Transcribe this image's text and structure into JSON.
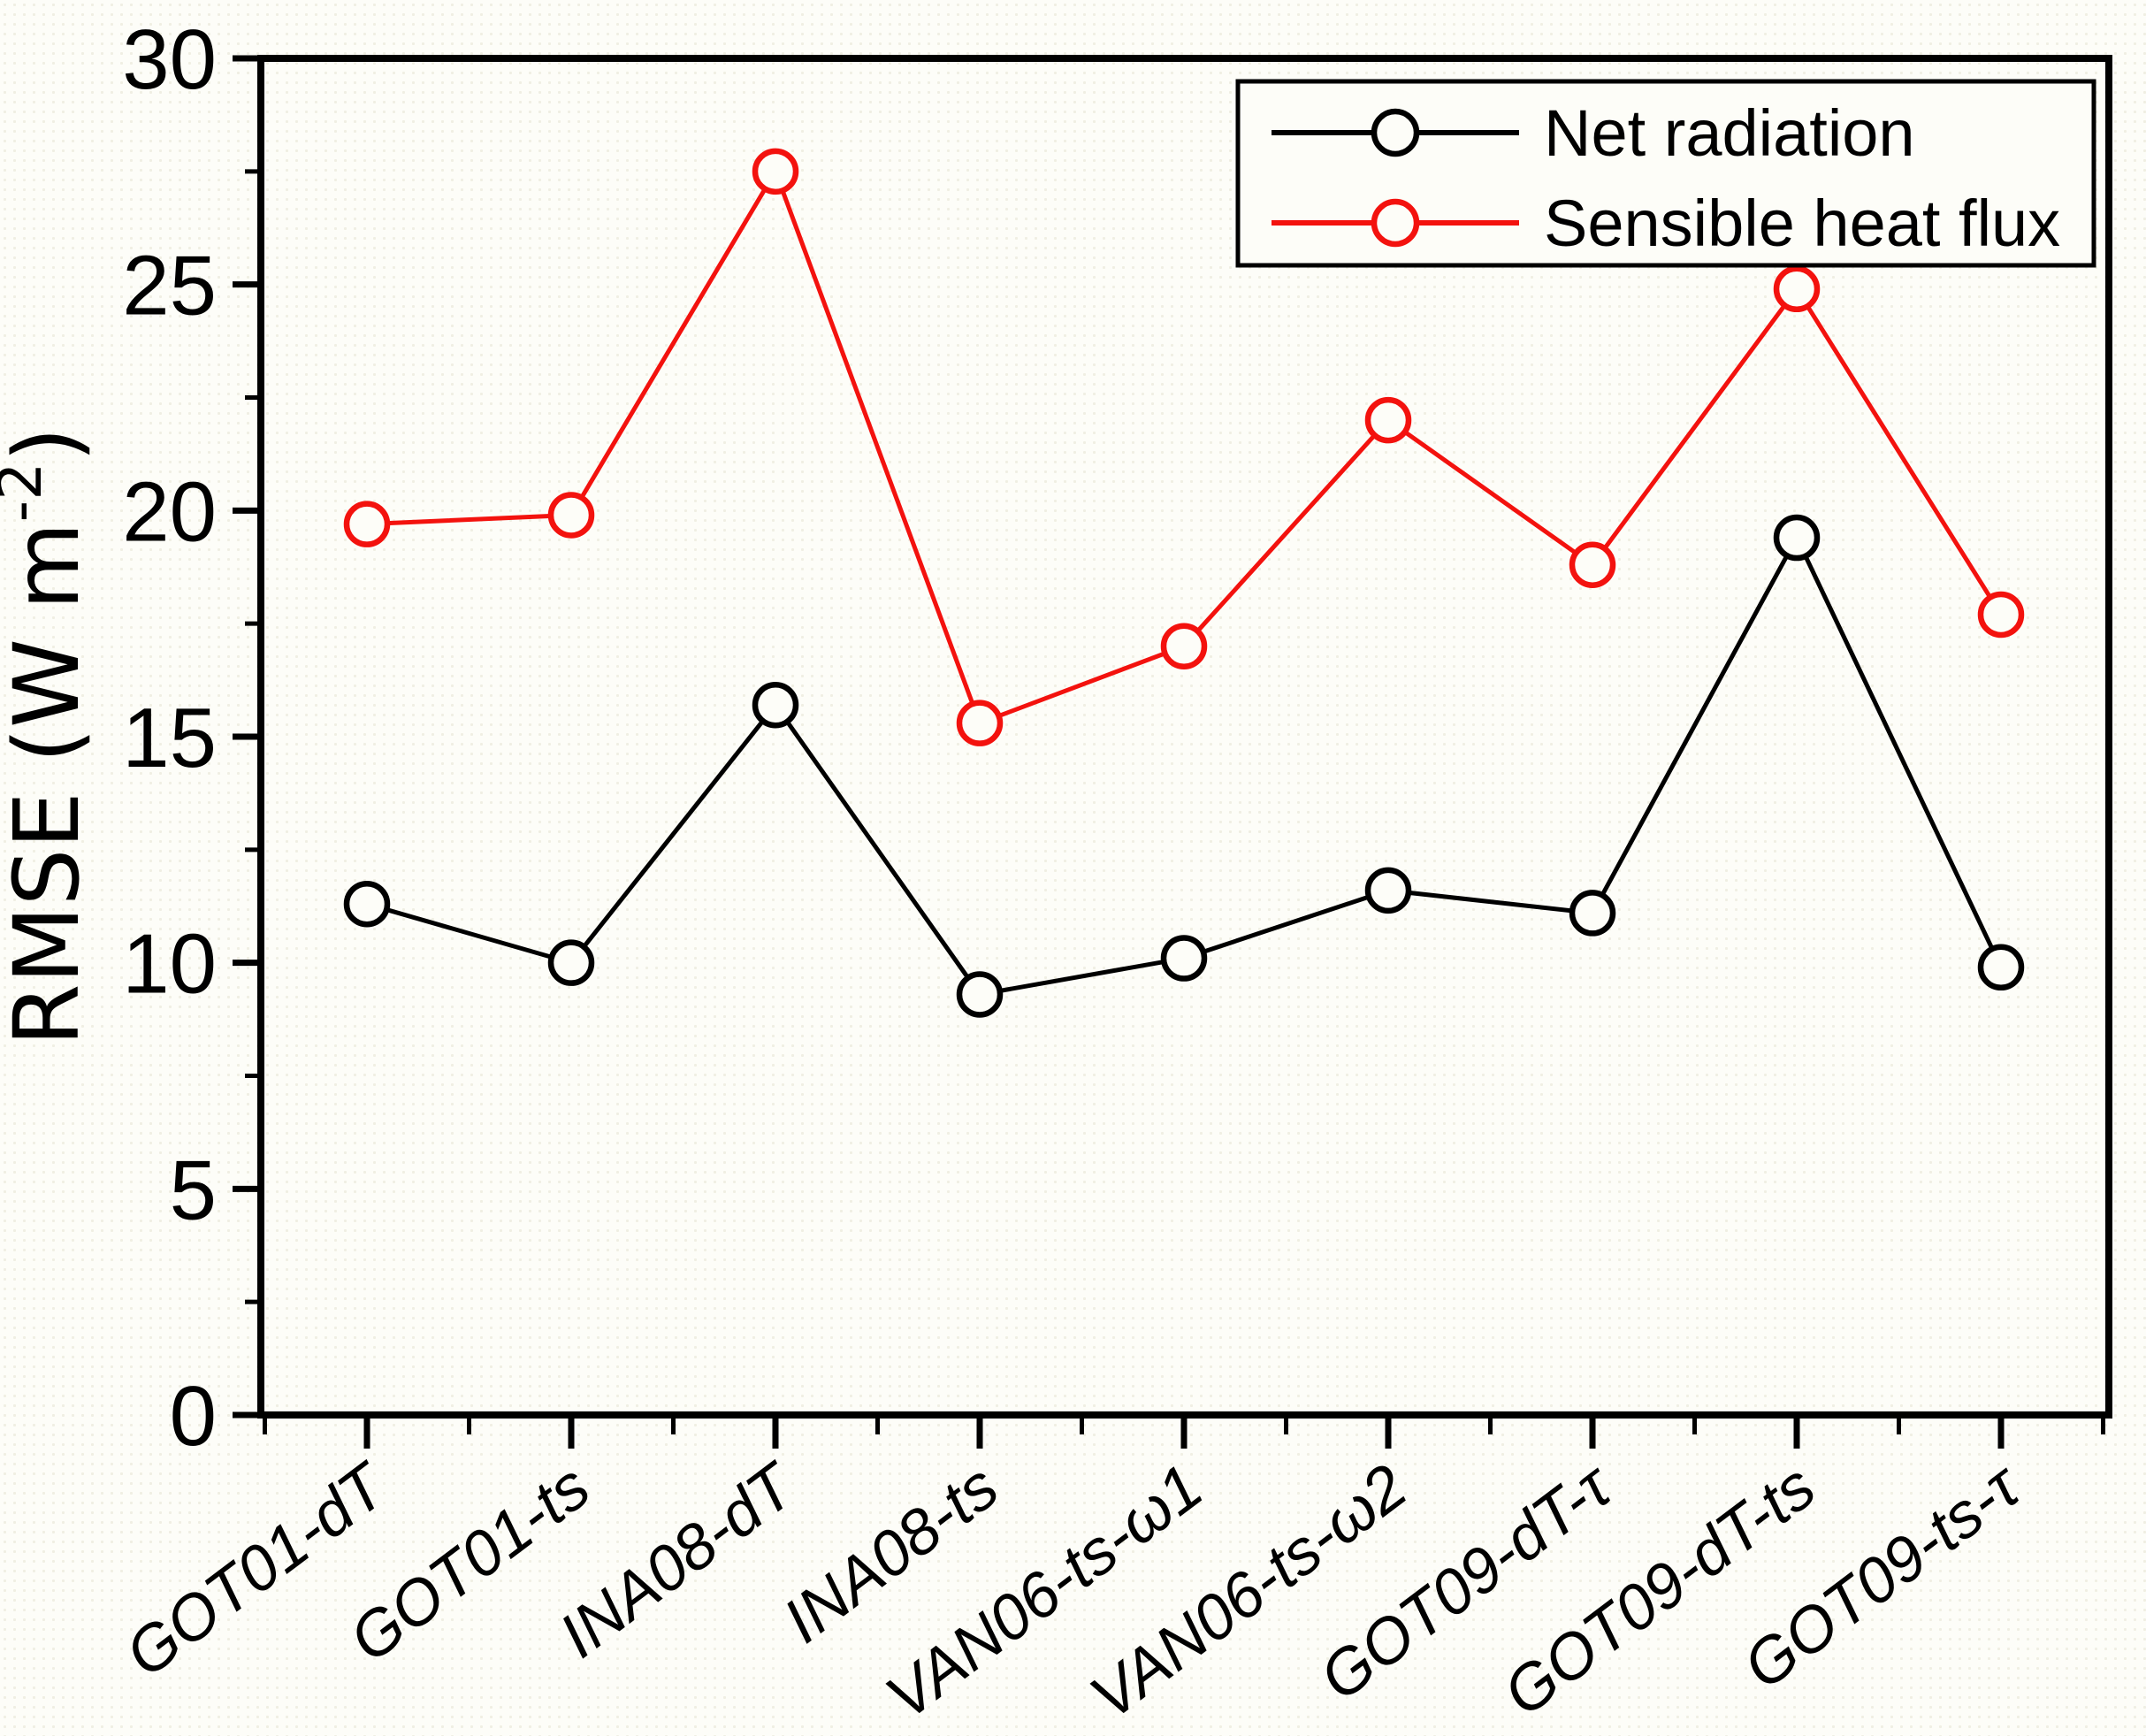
{
  "figure": {
    "background_color": "#fdfdf8",
    "frame_color": "#000000"
  },
  "axes": {
    "y": {
      "label": "RMSE (W m⁻²)",
      "label_base": "RMSE (W m",
      "label_exponent": "-2",
      "label_close": ")",
      "min": 0,
      "max": 30,
      "major_tick_step": 5,
      "minor_tick_step": 2.5,
      "tick_labels": [
        "0",
        "5",
        "10",
        "15",
        "20",
        "25",
        "30"
      ]
    },
    "x": {
      "categories": [
        "GOT01-dT",
        "GOT01-ts",
        "INA08-dT",
        "INA08-ts",
        "VAN06-ts-ω1",
        "VAN06-ts-ω2",
        "GOT09-dT-τ",
        "GOT09-dT-ts",
        "GOT09-ts-τ"
      ]
    }
  },
  "legend": {
    "items": [
      {
        "label": "Net radiation",
        "color": "#000000"
      },
      {
        "label": "Sensible heat flux",
        "color": "#f3120e"
      }
    ]
  },
  "chart_data": {
    "type": "line",
    "title": "",
    "xlabel": "",
    "ylabel": "RMSE (W m⁻²)",
    "ylim": [
      0,
      30
    ],
    "grid": false,
    "marker": "open-circle",
    "legend_position": "top-right",
    "categories": [
      "GOT01-dT",
      "GOT01-ts",
      "INA08-dT",
      "INA08-ts",
      "VAN06-ts-ω1",
      "VAN06-ts-ω2",
      "GOT09-dT-τ",
      "GOT09-dT-ts",
      "GOT09-ts-τ"
    ],
    "series": [
      {
        "name": "Net radiation",
        "color": "#000000",
        "values": [
          11.3,
          10.0,
          15.7,
          9.3,
          10.1,
          11.6,
          11.1,
          19.4,
          9.9
        ]
      },
      {
        "name": "Sensible heat flux",
        "color": "#f3120e",
        "values": [
          19.7,
          19.9,
          27.5,
          15.3,
          17.0,
          22.0,
          18.8,
          24.9,
          17.7
        ]
      }
    ]
  }
}
